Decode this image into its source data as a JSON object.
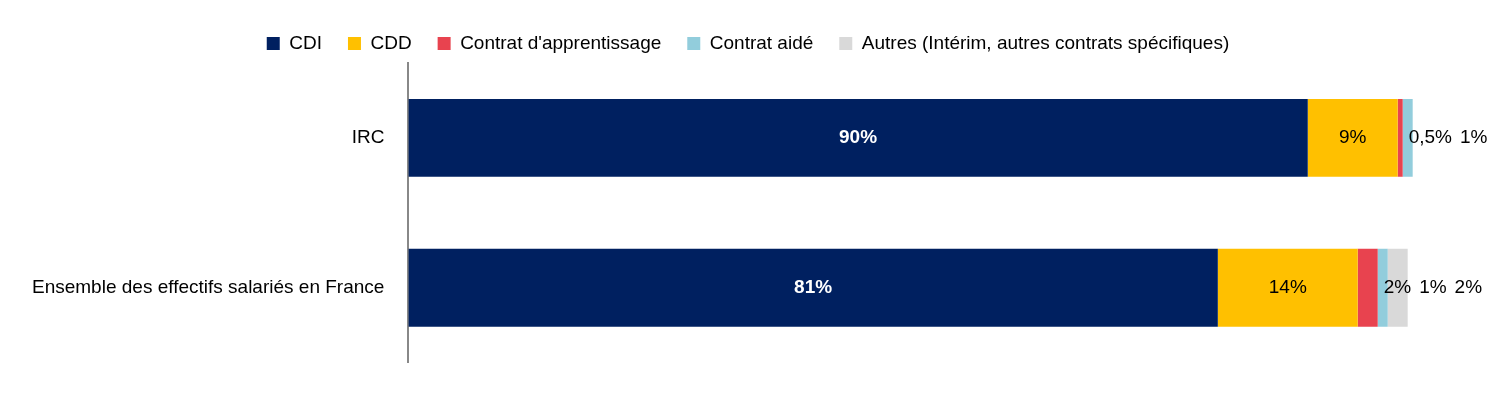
{
  "chart_data": {
    "type": "bar",
    "orientation": "horizontal",
    "stacked": true,
    "legend": "top",
    "categories": [
      "IRC",
      "Ensemble des effectifs salariés en France"
    ],
    "series": [
      {
        "name": "CDI",
        "color": "#002060",
        "values": [
          90,
          81
        ],
        "value_labels": [
          "90%",
          "81%"
        ]
      },
      {
        "name": "CDD",
        "color": "#ffc000",
        "values": [
          9,
          14
        ],
        "value_labels": [
          "9%",
          "14%"
        ]
      },
      {
        "name": "Contrat d'apprentissage",
        "color": "#e8434f",
        "values": [
          0.5,
          2
        ],
        "value_labels": [
          "0,5%",
          "2%"
        ]
      },
      {
        "name": "Contrat aidé",
        "color": "#92cddc",
        "values": [
          1,
          1
        ],
        "value_labels": [
          "1%",
          "1%"
        ]
      },
      {
        "name": "Autres (Intérim, autres contrats spécifiques)",
        "color": "#d9d9d9",
        "values": [
          null,
          2
        ],
        "value_labels": [
          null,
          "2%"
        ]
      }
    ]
  }
}
